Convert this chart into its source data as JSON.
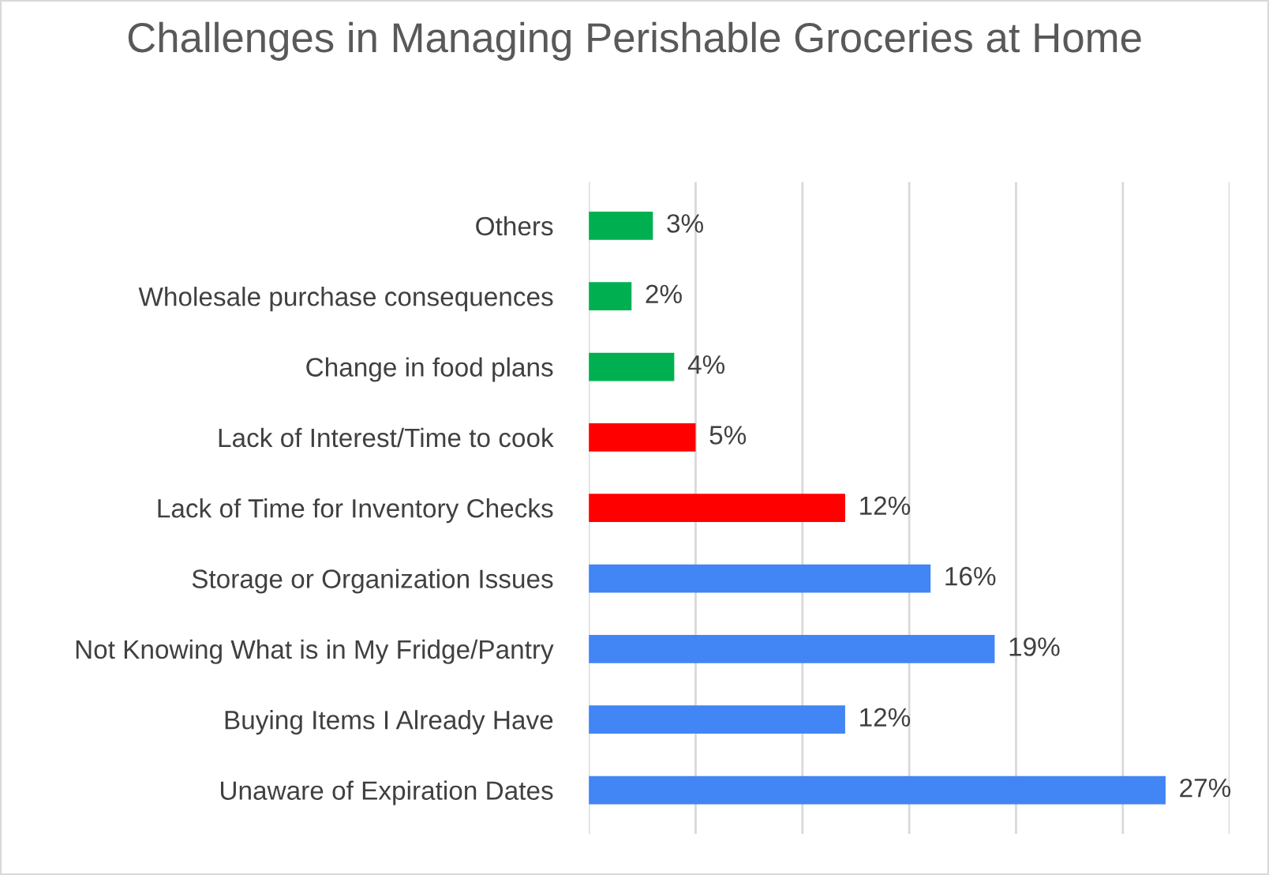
{
  "chart_data": {
    "type": "bar",
    "orientation": "horizontal",
    "title": "Challenges in Managing Perishable Groceries at Home",
    "categories": [
      "Others",
      "Wholesale purchase consequences",
      "Change in food plans",
      "Lack of Interest/Time to cook",
      "Lack of Time for Inventory Checks",
      "Storage or Organization Issues",
      "Not Knowing What is in My Fridge/Pantry",
      "Buying Items I Already Have",
      "Unaware of Expiration Dates"
    ],
    "values": [
      3,
      2,
      4,
      5,
      12,
      16,
      19,
      12,
      27
    ],
    "value_labels": [
      "3%",
      "2%",
      "4%",
      "5%",
      "12%",
      "16%",
      "19%",
      "12%",
      "27%"
    ],
    "colors": [
      "#00b050",
      "#00b050",
      "#00b050",
      "#ff0000",
      "#ff0000",
      "#4285f4",
      "#4285f4",
      "#4285f4",
      "#4285f4"
    ],
    "xlim": [
      0,
      30
    ],
    "xticks": [
      {
        "value": 0,
        "label": null
      },
      {
        "value": 5,
        "label": null
      },
      {
        "value": 10,
        "label": null
      },
      {
        "value": 15,
        "label": null
      },
      {
        "value": 20,
        "label": null
      },
      {
        "value": 25,
        "label": null
      },
      {
        "value": 30,
        "label": null
      }
    ],
    "tick_labels": "y",
    "grid": "x",
    "legend": false
  }
}
